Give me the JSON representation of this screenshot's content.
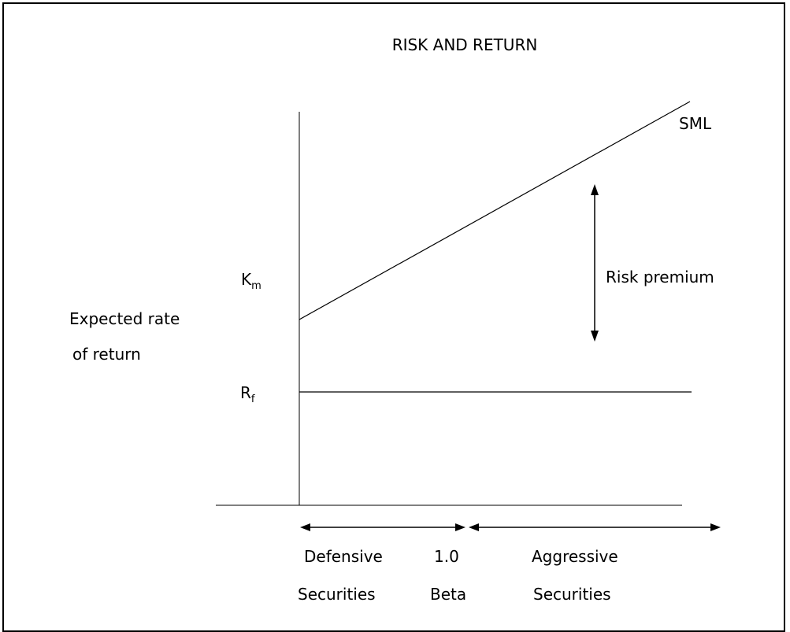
{
  "title": "RISK AND RETURN",
  "y_axis_label": {
    "line1": "Expected rate",
    "line2": "of return"
  },
  "markers": {
    "km": {
      "base": "K",
      "sub": "m"
    },
    "rf": {
      "base": "R",
      "sub": "f"
    }
  },
  "lines": {
    "sml_label": "SML"
  },
  "risk_premium_label": "Risk premium",
  "bottom": {
    "defensive": {
      "line1": "Defensive",
      "line2": "Securities"
    },
    "beta": {
      "line1": "1.0",
      "line2": "Beta"
    },
    "aggressive": {
      "line1": "Aggressive",
      "line2": "Securities"
    }
  }
}
